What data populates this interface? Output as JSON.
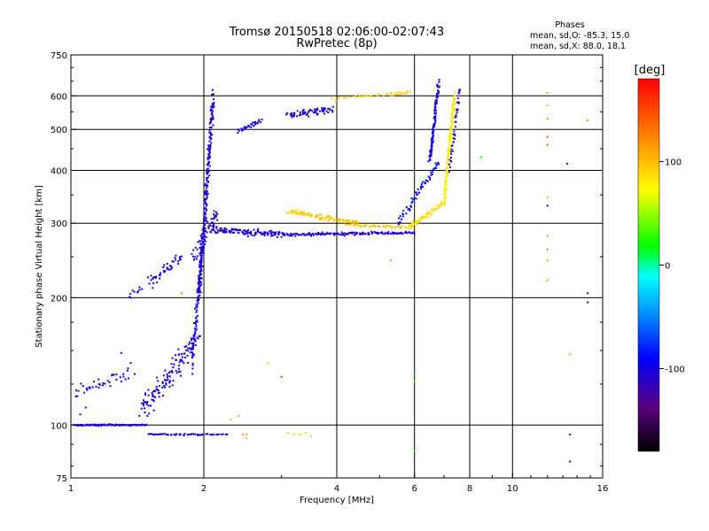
{
  "chart_data": {
    "type": "scatter",
    "title": "Tromsø 20150518 02:06:00-02:07:43",
    "subtitle": "RwPretec (8p)",
    "xlabel": "Frequency [MHz]",
    "ylabel": "Stationary phase Virtual Height [km]",
    "xscale": "log",
    "yscale": "log",
    "xlim": [
      1,
      16
    ],
    "ylim": [
      75,
      750
    ],
    "x_ticks": [
      {
        "value": 1,
        "label": "1"
      },
      {
        "value": 2,
        "label": "2"
      },
      {
        "value": 4,
        "label": "4"
      },
      {
        "value": 6,
        "label": "6"
      },
      {
        "value": 8,
        "label": "8"
      },
      {
        "value": 10,
        "label": "10"
      },
      {
        "value": 16,
        "label": "16"
      }
    ],
    "y_ticks": [
      {
        "value": 75,
        "label": "75"
      },
      {
        "value": 100,
        "label": "100"
      },
      {
        "value": 200,
        "label": "200"
      },
      {
        "value": 300,
        "label": "300"
      },
      {
        "value": 400,
        "label": "400"
      },
      {
        "value": 500,
        "label": "500"
      },
      {
        "value": 600,
        "label": "600"
      },
      {
        "value": 750,
        "label": "750"
      }
    ],
    "x_gridlines": [
      2,
      4,
      6,
      8,
      10
    ],
    "y_gridlines": [
      100,
      200,
      300,
      400,
      500,
      600
    ],
    "grid": true,
    "phase_stats": {
      "heading": "Phases",
      "o_line": "mean, sd,O: -85.3, 15.0",
      "x_line": "mean, sd,X:  88.0, 18.1"
    },
    "colorbar": {
      "label": "[deg]",
      "min": -180,
      "max": 180,
      "ticks": [
        {
          "value": 100,
          "label": "100"
        },
        {
          "value": 0,
          "label": "0"
        },
        {
          "value": -100,
          "label": "-100"
        }
      ]
    },
    "traces": [
      {
        "x0": 1.02,
        "x1": 1.48,
        "y0": 100,
        "y1": 100,
        "jf": 0.012,
        "jh": 0.006,
        "n": 110,
        "ph": -105,
        "jp": 15
      },
      {
        "x0": 1.02,
        "x1": 1.38,
        "y0": 118,
        "y1": 135,
        "jf": 0.02,
        "jh": 0.05,
        "n": 40,
        "ph": -95,
        "jp": 18
      },
      {
        "x0": 1.5,
        "x1": 1.98,
        "y0": 95,
        "y1": 95,
        "jf": 0.01,
        "jh": 0.006,
        "n": 40,
        "ph": -105,
        "jp": 12
      },
      {
        "x0": 2.0,
        "x1": 2.25,
        "y0": 95,
        "y1": 95,
        "jf": 0.01,
        "jh": 0.006,
        "n": 14,
        "ph": -105,
        "jp": 10
      },
      {
        "x0": 1.45,
        "x1": 1.93,
        "y0": 108,
        "y1": 160,
        "jf": 0.03,
        "jh": 0.1,
        "n": 130,
        "ph": -100,
        "jp": 20
      },
      {
        "x0": 1.5,
        "x1": 1.78,
        "y0": 215,
        "y1": 250,
        "jf": 0.02,
        "jh": 0.05,
        "n": 45,
        "ph": -100,
        "jp": 15
      },
      {
        "x0": 1.35,
        "x1": 1.45,
        "y0": 200,
        "y1": 212,
        "jf": 0.01,
        "jh": 0.03,
        "n": 10,
        "ph": -100,
        "jp": 10
      },
      {
        "x0": 1.88,
        "x1": 1.98,
        "y0": 140,
        "y1": 260,
        "jf": 0.01,
        "jh": 0.08,
        "n": 90,
        "ph": -100,
        "jp": 12
      },
      {
        "x0": 1.95,
        "x1": 2.1,
        "y0": 200,
        "y1": 600,
        "jf": 0.012,
        "jh": 0.05,
        "n": 240,
        "ph": -105,
        "jp": 12
      },
      {
        "x0": 1.9,
        "x1": 2.15,
        "y0": 250,
        "y1": 320,
        "jf": 0.03,
        "jh": 0.05,
        "n": 60,
        "ph": -105,
        "jp": 15
      },
      {
        "x0": 2.1,
        "x1": 3.0,
        "y0": 290,
        "y1": 282,
        "jf": 0.02,
        "jh": 0.025,
        "n": 120,
        "ph": -105,
        "jp": 12
      },
      {
        "x0": 3.0,
        "x1": 6.0,
        "y0": 282,
        "y1": 285,
        "jf": 0.012,
        "jh": 0.012,
        "n": 150,
        "ph": -110,
        "jp": 12
      },
      {
        "x0": 3.1,
        "x1": 4.5,
        "y0": 320,
        "y1": 300,
        "jf": 0.02,
        "jh": 0.02,
        "n": 100,
        "ph": 95,
        "jp": 15
      },
      {
        "x0": 4.2,
        "x1": 5.7,
        "y0": 298,
        "y1": 293,
        "jf": 0.015,
        "jh": 0.01,
        "n": 40,
        "ph": 100,
        "jp": 12
      },
      {
        "x0": 5.8,
        "x1": 7.0,
        "y0": 292,
        "y1": 335,
        "jf": 0.015,
        "jh": 0.02,
        "n": 70,
        "ph": 85,
        "jp": 15
      },
      {
        "x0": 7.0,
        "x1": 7.4,
        "y0": 340,
        "y1": 600,
        "jf": 0.01,
        "jh": 0.03,
        "n": 170,
        "ph": 80,
        "jp": 15
      },
      {
        "x0": 5.5,
        "x1": 6.8,
        "y0": 300,
        "y1": 420,
        "jf": 0.015,
        "jh": 0.03,
        "n": 60,
        "ph": -90,
        "jp": 20
      },
      {
        "x0": 6.5,
        "x1": 6.8,
        "y0": 420,
        "y1": 640,
        "jf": 0.008,
        "jh": 0.03,
        "n": 110,
        "ph": -100,
        "jp": 15
      },
      {
        "x0": 7.2,
        "x1": 7.6,
        "y0": 400,
        "y1": 630,
        "jf": 0.01,
        "jh": 0.03,
        "n": 40,
        "ph": -110,
        "jp": 15
      },
      {
        "x0": 2.4,
        "x1": 2.7,
        "y0": 495,
        "y1": 525,
        "jf": 0.02,
        "jh": 0.02,
        "n": 30,
        "ph": -100,
        "jp": 12
      },
      {
        "x0": 3.1,
        "x1": 3.9,
        "y0": 540,
        "y1": 560,
        "jf": 0.02,
        "jh": 0.03,
        "n": 70,
        "ph": -110,
        "jp": 12
      },
      {
        "x0": 3.9,
        "x1": 5.5,
        "y0": 590,
        "y1": 610,
        "jf": 0.015,
        "jh": 0.015,
        "n": 25,
        "ph": 90,
        "jp": 20
      },
      {
        "x0": 5.3,
        "x1": 5.9,
        "y0": 600,
        "y1": 615,
        "jf": 0.01,
        "jh": 0.01,
        "n": 15,
        "ph": 95,
        "jp": 15
      }
    ],
    "extra_points": [
      {
        "x": 12.0,
        "y": 610,
        "ph": 120
      },
      {
        "x": 12.0,
        "y": 570,
        "ph": 100
      },
      {
        "x": 12.0,
        "y": 530,
        "ph": 30
      },
      {
        "x": 12.0,
        "y": 480,
        "ph": 150
      },
      {
        "x": 12.0,
        "y": 460,
        "ph": 140
      },
      {
        "x": 12.0,
        "y": 345,
        "ph": 100
      },
      {
        "x": 12.0,
        "y": 330,
        "ph": -100
      },
      {
        "x": 12.0,
        "y": 280,
        "ph": 120
      },
      {
        "x": 12.0,
        "y": 260,
        "ph": 130
      },
      {
        "x": 12.0,
        "y": 245,
        "ph": 110
      },
      {
        "x": 12.0,
        "y": 220,
        "ph": 30
      },
      {
        "x": 13.3,
        "y": 415,
        "ph": -150
      },
      {
        "x": 14.8,
        "y": 525,
        "ph": 120
      },
      {
        "x": 14.8,
        "y": 205,
        "ph": -150
      },
      {
        "x": 14.8,
        "y": 195,
        "ph": -150
      },
      {
        "x": 13.5,
        "y": 147,
        "ph": 110
      },
      {
        "x": 13.5,
        "y": 95,
        "ph": -120
      },
      {
        "x": 13.5,
        "y": 82,
        "ph": -120
      },
      {
        "x": 6.0,
        "y": 132,
        "ph": 20
      },
      {
        "x": 6.0,
        "y": 127,
        "ph": 30
      },
      {
        "x": 6.0,
        "y": 87,
        "ph": 20
      },
      {
        "x": 3.0,
        "y": 130,
        "ph": 160
      },
      {
        "x": 2.8,
        "y": 140,
        "ph": 100
      },
      {
        "x": 5.3,
        "y": 245,
        "ph": 30
      },
      {
        "x": 8.5,
        "y": 430,
        "ph": 20
      },
      {
        "x": 2.4,
        "y": 105,
        "ph": 110
      },
      {
        "x": 2.45,
        "y": 95,
        "ph": 110
      },
      {
        "x": 2.5,
        "y": 93,
        "ph": 100
      },
      {
        "x": 2.5,
        "y": 95,
        "ph": 120
      },
      {
        "x": 3.2,
        "y": 95,
        "ph": 90
      },
      {
        "x": 3.3,
        "y": 95,
        "ph": 95
      },
      {
        "x": 3.4,
        "y": 96,
        "ph": 100
      },
      {
        "x": 3.5,
        "y": 94,
        "ph": 90
      },
      {
        "x": 3.1,
        "y": 96,
        "ph": 95
      },
      {
        "x": 2.3,
        "y": 103,
        "ph": 100
      },
      {
        "x": 1.78,
        "y": 205,
        "ph": 130
      },
      {
        "x": 1.3,
        "y": 148,
        "ph": -100
      },
      {
        "x": 1.08,
        "y": 110,
        "ph": -100
      },
      {
        "x": 1.05,
        "y": 106,
        "ph": -100
      }
    ]
  }
}
